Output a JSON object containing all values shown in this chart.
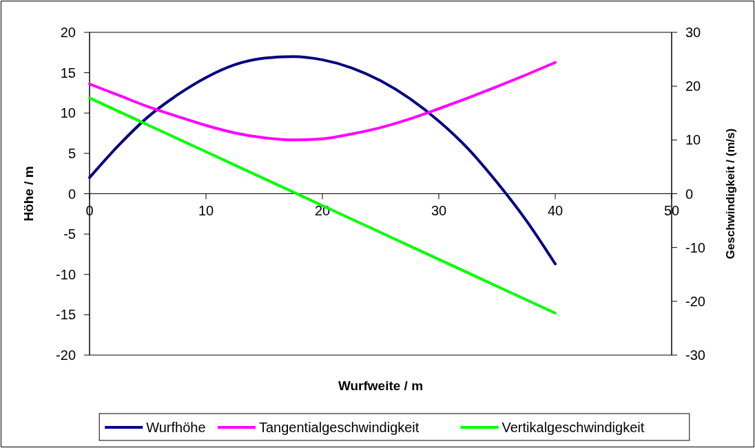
{
  "chart_data": {
    "type": "line",
    "xlabel": "Wurfweite / m",
    "ylabel": "Höhe / m",
    "y2label": "Geschwindigkeit / (m/s)",
    "xlim": [
      0,
      50
    ],
    "xticks": [
      0,
      10,
      20,
      30,
      40,
      50
    ],
    "ylim": [
      -20,
      20
    ],
    "yticks": [
      -20,
      -15,
      -10,
      -5,
      0,
      5,
      10,
      15,
      20
    ],
    "y2lim": [
      -30,
      30
    ],
    "y2ticks": [
      -30,
      -20,
      -10,
      0,
      10,
      20,
      30
    ],
    "x": [
      0,
      2.5,
      5,
      7.5,
      10,
      12.5,
      15,
      17.5,
      20,
      22.5,
      25,
      27.5,
      30,
      32.5,
      35,
      37.5,
      40
    ],
    "series": [
      {
        "name": "Wurfhöhe",
        "color": "#000080",
        "values": [
          2,
          6.0,
          9.5,
          12.2,
          14.4,
          16.0,
          16.8,
          17.0,
          16.6,
          15.6,
          14.0,
          11.8,
          9.0,
          5.6,
          1.4,
          -3.3,
          -8.7
        ]
      },
      {
        "name": "Tangentialgeschwindigkeit",
        "color": "#ff00ff",
        "axis": "y2",
        "values": [
          20.4,
          18.3,
          16.2,
          14.4,
          12.7,
          11.3,
          10.4,
          10.0,
          10.2,
          11.1,
          12.3,
          13.9,
          15.8,
          17.8,
          19.9,
          22.1,
          24.4
        ]
      },
      {
        "name": "Vertikalgeschwindigkeit",
        "color": "#00ff00",
        "axis": "y2",
        "values": [
          17.8,
          15.3,
          12.8,
          10.3,
          7.8,
          5.3,
          2.8,
          0.3,
          -2.2,
          -4.7,
          -7.2,
          -9.7,
          -12.2,
          -14.7,
          -17.2,
          -19.7,
          -22.2
        ]
      }
    ],
    "grid": false,
    "legend": "bottom",
    "marker": "none",
    "line_style": "solid"
  }
}
